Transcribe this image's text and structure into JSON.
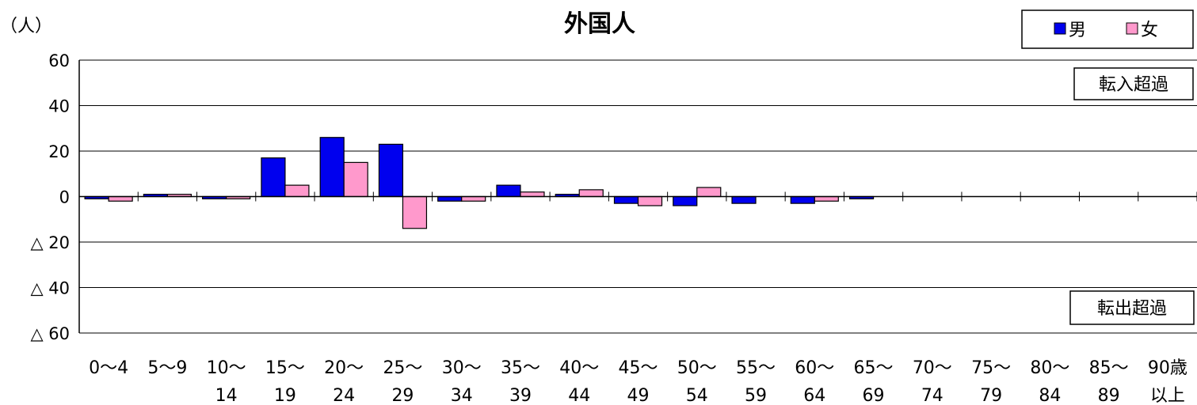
{
  "chart_data": {
    "type": "bar",
    "title": "外国人",
    "unit_label": "（人）",
    "ylim": [
      -60,
      60
    ],
    "yticks": [
      {
        "value": 60,
        "label": "60"
      },
      {
        "value": 40,
        "label": "40"
      },
      {
        "value": 20,
        "label": "20"
      },
      {
        "value": 0,
        "label": "0"
      },
      {
        "value": -20,
        "label": "△ 20"
      },
      {
        "value": -40,
        "label": "△ 40"
      },
      {
        "value": -60,
        "label": "△ 60"
      }
    ],
    "grid": true,
    "legend_position": "top-right",
    "categories": [
      {
        "line1": "0～4",
        "line2": ""
      },
      {
        "line1": "5～9",
        "line2": ""
      },
      {
        "line1": "10～",
        "line2": "14"
      },
      {
        "line1": "15～",
        "line2": "19"
      },
      {
        "line1": "20～",
        "line2": "24"
      },
      {
        "line1": "25～",
        "line2": "29"
      },
      {
        "line1": "30～",
        "line2": "34"
      },
      {
        "line1": "35～",
        "line2": "39"
      },
      {
        "line1": "40～",
        "line2": "44"
      },
      {
        "line1": "45～",
        "line2": "49"
      },
      {
        "line1": "50～",
        "line2": "54"
      },
      {
        "line1": "55～",
        "line2": "59"
      },
      {
        "line1": "60～",
        "line2": "64"
      },
      {
        "line1": "65～",
        "line2": "69"
      },
      {
        "line1": "70～",
        "line2": "74"
      },
      {
        "line1": "75～",
        "line2": "79"
      },
      {
        "line1": "80～",
        "line2": "84"
      },
      {
        "line1": "85～",
        "line2": "89"
      },
      {
        "line1": "90歳",
        "line2": "以上"
      }
    ],
    "series": [
      {
        "name": "男",
        "color": "#0000ee",
        "values": [
          -1,
          1,
          -1,
          17,
          26,
          23,
          -2,
          5,
          1,
          -3,
          -4,
          -3,
          -3,
          -1,
          0,
          0,
          0,
          0,
          0
        ]
      },
      {
        "name": "女",
        "color": "#ff99cc",
        "values": [
          -2,
          1,
          -1,
          5,
          15,
          -14,
          -2,
          2,
          3,
          -4,
          4,
          0,
          -2,
          0,
          0,
          0,
          0,
          0,
          0
        ]
      }
    ],
    "annotations": {
      "inflow": "転入超過",
      "outflow": "転出超過"
    }
  }
}
